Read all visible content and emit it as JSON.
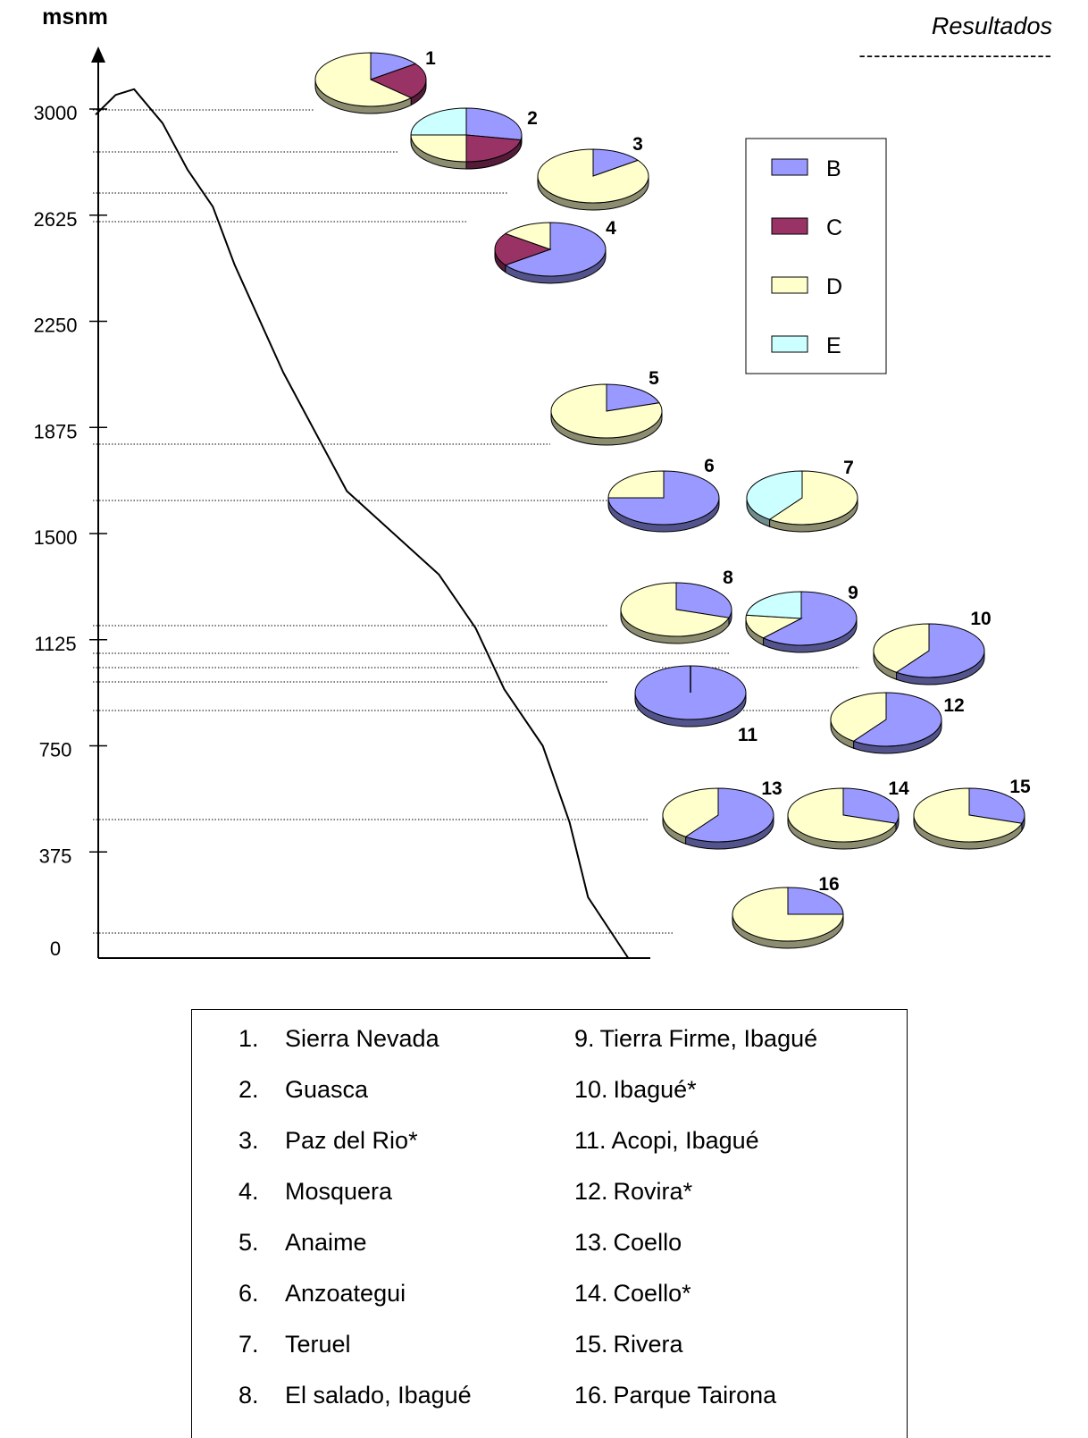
{
  "header": {
    "title": "Resultados",
    "rule": "--------------------------"
  },
  "colors": {
    "B": "#9999ff",
    "C": "#993366",
    "D": "#ffffcc",
    "E": "#ccffff"
  },
  "chart_data": {
    "type": "pie",
    "ylabel": "msnm",
    "yticks": [
      "0",
      "375",
      "750",
      "1125",
      "1500",
      "1875",
      "2250",
      "2625",
      "3000"
    ],
    "ylim": [
      0,
      3250
    ],
    "legend": {
      "placement": "right",
      "entries": [
        "B",
        "C",
        "D",
        "E"
      ]
    },
    "profile": [
      [
        0,
        2980
      ],
      [
        12,
        3050
      ],
      [
        23,
        3070
      ],
      [
        40,
        2950
      ],
      [
        55,
        2785
      ],
      [
        70,
        2655
      ],
      [
        83,
        2450
      ],
      [
        112,
        2070
      ],
      [
        150,
        1650
      ],
      [
        205,
        1355
      ],
      [
        227,
        1165
      ],
      [
        244,
        950
      ],
      [
        267,
        750
      ],
      [
        283,
        480
      ],
      [
        294,
        215
      ],
      [
        318,
        0
      ]
    ],
    "pies": [
      {
        "label": "1",
        "site": "Sierra Nevada",
        "altitude": 3005,
        "slices": [
          {
            "cat": "B",
            "value": 15
          },
          {
            "cat": "C",
            "value": 22
          },
          {
            "cat": "D",
            "value": 63
          }
        ]
      },
      {
        "label": "2",
        "site": "Guasca",
        "altitude": 2840,
        "slices": [
          {
            "cat": "B",
            "value": 28
          },
          {
            "cat": "C",
            "value": 22
          },
          {
            "cat": "D",
            "value": 25
          },
          {
            "cat": "E",
            "value": 25
          }
        ]
      },
      {
        "label": "3",
        "site": "Paz del Rio*",
        "altitude": 2700,
        "slices": [
          {
            "cat": "B",
            "value": 15
          },
          {
            "cat": "D",
            "value": 85
          }
        ]
      },
      {
        "label": "4",
        "site": "Mosquera",
        "altitude": 2600,
        "slices": [
          {
            "cat": "B",
            "value": 65
          },
          {
            "cat": "C",
            "value": 20
          },
          {
            "cat": "D",
            "value": 15
          }
        ]
      },
      {
        "label": "5",
        "site": "Anaime",
        "altitude": 1840,
        "slices": [
          {
            "cat": "B",
            "value": 20
          },
          {
            "cat": "D",
            "value": 80
          }
        ]
      },
      {
        "label": "6",
        "site": "Anzoategui",
        "altitude": 1650,
        "slices": [
          {
            "cat": "B",
            "value": 75
          },
          {
            "cat": "D",
            "value": 25
          }
        ]
      },
      {
        "label": "7",
        "site": "Teruel",
        "altitude": 1650,
        "slices": [
          {
            "cat": "D",
            "value": 60
          },
          {
            "cat": "E",
            "value": 40
          }
        ]
      },
      {
        "label": "8",
        "site": "El salado, Ibagué",
        "altitude": 1195,
        "slices": [
          {
            "cat": "B",
            "value": 30
          },
          {
            "cat": "D",
            "value": 70
          }
        ]
      },
      {
        "label": "9",
        "site": "Tierra Firme, Ibagué",
        "altitude": 1145,
        "slices": [
          {
            "cat": "B",
            "value": 62
          },
          {
            "cat": "D",
            "value": 15
          },
          {
            "cat": "E",
            "value": 23
          }
        ]
      },
      {
        "label": "10",
        "site": "Ibagué*",
        "altitude": 1095,
        "slices": [
          {
            "cat": "B",
            "value": 60
          },
          {
            "cat": "D",
            "value": 40
          }
        ]
      },
      {
        "label": "11",
        "site": "Acopi, Ibagué",
        "altitude": 1045,
        "slices": [
          {
            "cat": "B",
            "value": 100
          }
        ]
      },
      {
        "label": "12",
        "site": "Rovira*",
        "altitude": 940,
        "slices": [
          {
            "cat": "B",
            "value": 60
          },
          {
            "cat": "D",
            "value": 40
          }
        ]
      },
      {
        "label": "13",
        "site": "Coello",
        "altitude": 470,
        "slices": [
          {
            "cat": "B",
            "value": 60
          },
          {
            "cat": "D",
            "value": 40
          }
        ]
      },
      {
        "label": "14",
        "site": "Coello*",
        "altitude": 470,
        "slices": [
          {
            "cat": "B",
            "value": 30
          },
          {
            "cat": "D",
            "value": 70
          }
        ]
      },
      {
        "label": "15",
        "site": "Rivera",
        "altitude": 470,
        "slices": [
          {
            "cat": "B",
            "value": 30
          },
          {
            "cat": "D",
            "value": 70
          }
        ]
      },
      {
        "label": "16",
        "site": "Parque Tairona",
        "altitude": 80,
        "slices": [
          {
            "cat": "B",
            "value": 25
          },
          {
            "cat": "D",
            "value": 75
          }
        ]
      }
    ]
  }
}
